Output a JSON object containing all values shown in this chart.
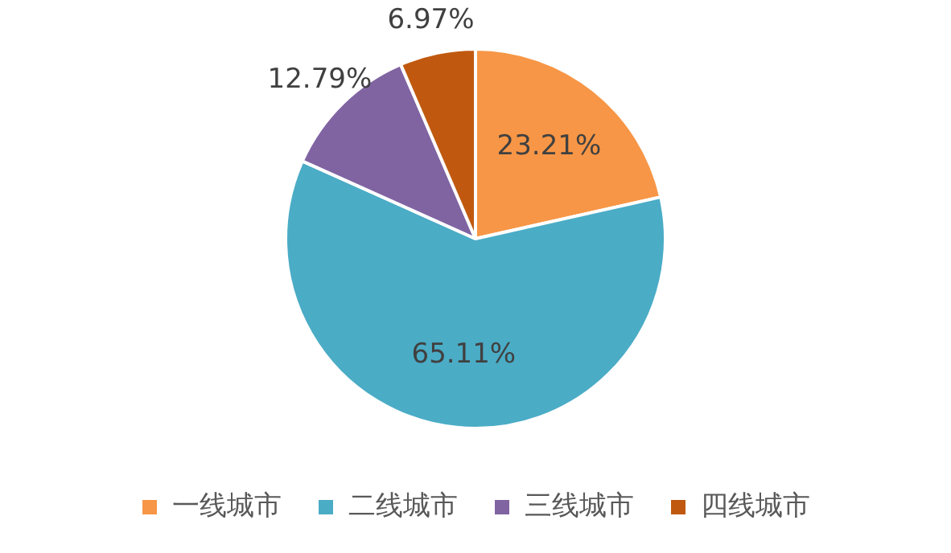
{
  "chart_data": {
    "type": "pie",
    "categories": [
      "一线城市",
      "二线城市",
      "三线城市",
      "四线城市"
    ],
    "values": [
      23.21,
      65.11,
      12.79,
      6.97
    ],
    "colors": [
      "#f79646",
      "#4bacc6",
      "#8064a2",
      "#c0590f"
    ],
    "value_labels": [
      "23.21%",
      "65.11%",
      "12.79%",
      "6.97%"
    ],
    "legend": "bottom"
  }
}
